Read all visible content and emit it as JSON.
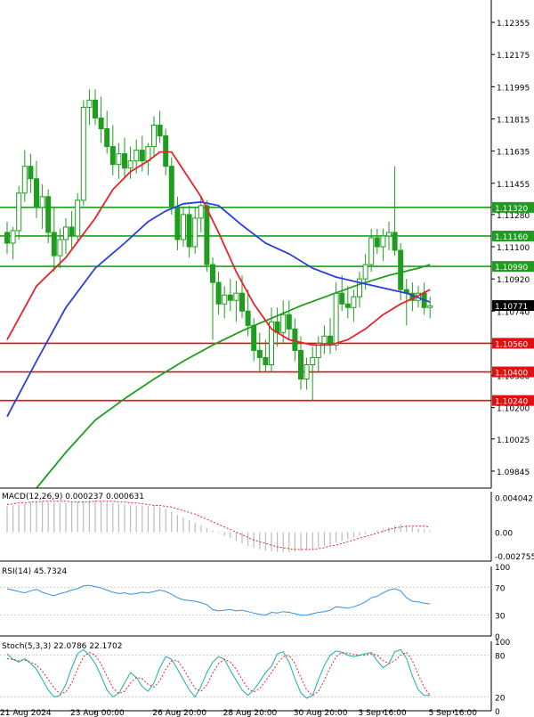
{
  "chart_data": {
    "type": "candlestick",
    "instrument_timeframe": "",
    "main": {
      "y_ticks": [
        "1.12355",
        "1.12175",
        "1.11995",
        "1.11815",
        "1.11635",
        "1.11455",
        "1.11280",
        "1.11100",
        "1.10920",
        "1.10740",
        "1.10560",
        "1.10380",
        "1.10200",
        "1.10025",
        "1.09845"
      ],
      "y_tick_values": [
        1.12355,
        1.12175,
        1.11995,
        1.11815,
        1.11635,
        1.11455,
        1.1128,
        1.111,
        1.1092,
        1.1074,
        1.1056,
        1.1038,
        1.102,
        1.10025,
        1.09845
      ],
      "ylim": [
        1.0975,
        1.1248
      ],
      "current_price": "1.10771",
      "current_value": 1.10771,
      "support_resistance": [
        {
          "label": "1.11320",
          "value": 1.1132,
          "color": "#1f9d1f"
        },
        {
          "label": "1.11160",
          "value": 1.1116,
          "color": "#1f9d1f"
        },
        {
          "label": "1.10990",
          "value": 1.1099,
          "color": "#1f9d1f"
        },
        {
          "label": "1.10560",
          "value": 1.1056,
          "color": "#e01010"
        },
        {
          "label": "1.10400",
          "value": 1.104,
          "color": "#e01010"
        },
        {
          "label": "1.10240",
          "value": 1.1024,
          "color": "#e01010"
        }
      ],
      "candles": [
        [
          1.1118,
          1.1124,
          1.1106,
          1.1112
        ],
        [
          1.1112,
          1.1121,
          1.1103,
          1.1119
        ],
        [
          1.1119,
          1.1144,
          1.1114,
          1.114
        ],
        [
          1.114,
          1.1164,
          1.1135,
          1.1155
        ],
        [
          1.1155,
          1.1162,
          1.114,
          1.1148
        ],
        [
          1.1148,
          1.1158,
          1.1126,
          1.1132
        ],
        [
          1.1132,
          1.1145,
          1.112,
          1.1138
        ],
        [
          1.1138,
          1.1142,
          1.1112,
          1.1118
        ],
        [
          1.1118,
          1.1132,
          1.1096,
          1.1105
        ],
        [
          1.1105,
          1.112,
          1.1098,
          1.1114
        ],
        [
          1.1114,
          1.1126,
          1.1106,
          1.1121
        ],
        [
          1.1121,
          1.113,
          1.1108,
          1.1116
        ],
        [
          1.1116,
          1.114,
          1.1112,
          1.1136
        ],
        [
          1.1136,
          1.1192,
          1.1133,
          1.1188
        ],
        [
          1.1188,
          1.1198,
          1.1178,
          1.1192
        ],
        [
          1.1192,
          1.1198,
          1.1178,
          1.1182
        ],
        [
          1.1182,
          1.1194,
          1.1168,
          1.1176
        ],
        [
          1.1176,
          1.1186,
          1.1162,
          1.1166
        ],
        [
          1.1166,
          1.1178,
          1.115,
          1.1156
        ],
        [
          1.1156,
          1.1168,
          1.1148,
          1.1162
        ],
        [
          1.1162,
          1.1171,
          1.1148,
          1.1154
        ],
        [
          1.1154,
          1.1166,
          1.1148,
          1.1158
        ],
        [
          1.1158,
          1.117,
          1.1151,
          1.1164
        ],
        [
          1.1164,
          1.1172,
          1.1152,
          1.1158
        ],
        [
          1.1158,
          1.1168,
          1.115,
          1.1166
        ],
        [
          1.1166,
          1.1183,
          1.116,
          1.1178
        ],
        [
          1.1178,
          1.1186,
          1.1168,
          1.1172
        ],
        [
          1.1172,
          1.1176,
          1.115,
          1.1155
        ],
        [
          1.1155,
          1.116,
          1.1128,
          1.1132
        ],
        [
          1.1132,
          1.1138,
          1.1108,
          1.1114
        ],
        [
          1.1114,
          1.1132,
          1.111,
          1.1128
        ],
        [
          1.1128,
          1.1133,
          1.1104,
          1.111
        ],
        [
          1.111,
          1.1132,
          1.1106,
          1.1126
        ],
        [
          1.1126,
          1.1138,
          1.1118,
          1.1133
        ],
        [
          1.1133,
          1.1136,
          1.1096,
          1.11
        ],
        [
          1.11,
          1.1104,
          1.1058,
          1.109
        ],
        [
          1.109,
          1.1096,
          1.1072,
          1.1078
        ],
        [
          1.1078,
          1.1088,
          1.107,
          1.1083
        ],
        [
          1.1083,
          1.1092,
          1.1074,
          1.108
        ],
        [
          1.108,
          1.1091,
          1.1068,
          1.1084
        ],
        [
          1.1084,
          1.1094,
          1.107,
          1.1074
        ],
        [
          1.1074,
          1.1086,
          1.106,
          1.1066
        ],
        [
          1.1066,
          1.107,
          1.1046,
          1.1052
        ],
        [
          1.1052,
          1.1062,
          1.104,
          1.1048
        ],
        [
          1.1048,
          1.1058,
          1.104,
          1.1044
        ],
        [
          1.1044,
          1.1076,
          1.104,
          1.1068
        ],
        [
          1.1068,
          1.1076,
          1.1054,
          1.1062
        ],
        [
          1.1062,
          1.108,
          1.1056,
          1.1072
        ],
        [
          1.1072,
          1.108,
          1.1058,
          1.1064
        ],
        [
          1.1064,
          1.107,
          1.1046,
          1.1052
        ],
        [
          1.1052,
          1.106,
          1.103,
          1.1036
        ],
        [
          1.1036,
          1.1048,
          1.103,
          1.1044
        ],
        [
          1.1044,
          1.1054,
          1.1024,
          1.1048
        ],
        [
          1.1048,
          1.106,
          1.104,
          1.1056
        ],
        [
          1.1056,
          1.1066,
          1.105,
          1.106
        ],
        [
          1.106,
          1.107,
          1.105,
          1.1055
        ],
        [
          1.1055,
          1.109,
          1.1052,
          1.1084
        ],
        [
          1.1084,
          1.1094,
          1.1074,
          1.1078
        ],
        [
          1.1078,
          1.1088,
          1.107,
          1.1076
        ],
        [
          1.1076,
          1.1086,
          1.1068,
          1.1082
        ],
        [
          1.1082,
          1.1096,
          1.1076,
          1.1092
        ],
        [
          1.1092,
          1.1106,
          1.1086,
          1.11
        ],
        [
          1.11,
          1.112,
          1.1096,
          1.1115
        ],
        [
          1.1115,
          1.112,
          1.1106,
          1.111
        ],
        [
          1.111,
          1.112,
          1.1102,
          1.1116
        ],
        [
          1.1116,
          1.1124,
          1.1108,
          1.1118
        ],
        [
          1.1118,
          1.1155,
          1.1105,
          1.1108
        ],
        [
          1.1108,
          1.1112,
          1.108,
          1.1086
        ],
        [
          1.1086,
          1.1092,
          1.1066,
          1.1084
        ],
        [
          1.1084,
          1.109,
          1.1074,
          1.108
        ],
        [
          1.108,
          1.1088,
          1.1076,
          1.1084
        ],
        [
          1.1084,
          1.109,
          1.1072,
          1.1076
        ],
        [
          1.1076,
          1.1082,
          1.107,
          1.1077
        ]
      ],
      "ma_short": [
        [
          0,
          1.1058
        ],
        [
          5,
          1.1088
        ],
        [
          10,
          1.1104
        ],
        [
          15,
          1.1126
        ],
        [
          18,
          1.1142
        ],
        [
          21,
          1.1152
        ],
        [
          24,
          1.1158
        ],
        [
          26,
          1.1163
        ],
        [
          28,
          1.1163
        ],
        [
          30,
          1.1153
        ],
        [
          33,
          1.1138
        ],
        [
          36,
          1.1118
        ],
        [
          39,
          1.1096
        ],
        [
          42,
          1.1078
        ],
        [
          45,
          1.1064
        ],
        [
          48,
          1.1058
        ],
        [
          52,
          1.1055
        ],
        [
          55,
          1.1055
        ],
        [
          58,
          1.1058
        ],
        [
          61,
          1.1064
        ],
        [
          64,
          1.1072
        ],
        [
          67,
          1.1078
        ],
        [
          69,
          1.1081
        ],
        [
          72,
          1.1086
        ]
      ],
      "ma_mid": [
        [
          0,
          1.1015
        ],
        [
          5,
          1.1046
        ],
        [
          10,
          1.1076
        ],
        [
          15,
          1.1098
        ],
        [
          20,
          1.1112
        ],
        [
          24,
          1.1124
        ],
        [
          27,
          1.113
        ],
        [
          30,
          1.1134
        ],
        [
          33,
          1.1135
        ],
        [
          36,
          1.1133
        ],
        [
          40,
          1.1122
        ],
        [
          44,
          1.1112
        ],
        [
          48,
          1.1106
        ],
        [
          52,
          1.1098
        ],
        [
          56,
          1.1093
        ],
        [
          60,
          1.109
        ],
        [
          64,
          1.1087
        ],
        [
          68,
          1.1084
        ],
        [
          72,
          1.1079
        ]
      ],
      "ma_long": [
        [
          5,
          1.0975
        ],
        [
          10,
          1.0995
        ],
        [
          15,
          1.1013
        ],
        [
          20,
          1.1025
        ],
        [
          25,
          1.1036
        ],
        [
          30,
          1.1046
        ],
        [
          35,
          1.1055
        ],
        [
          40,
          1.1063
        ],
        [
          45,
          1.107
        ],
        [
          50,
          1.1077
        ],
        [
          55,
          1.1083
        ],
        [
          60,
          1.1089
        ],
        [
          65,
          1.1094
        ],
        [
          70,
          1.1098
        ],
        [
          72,
          1.11
        ]
      ],
      "series_colors": {
        "ma_short": "#e8232b",
        "ma_mid": "#2a3ee0",
        "ma_long": "#1f9d1f",
        "candle": "#1f9d1f"
      }
    },
    "macd": {
      "label": "MACD(12,26,9) 0.000237 0.000631",
      "y_ticks": [
        "0.004042",
        "0.00",
        "-0.002755"
      ],
      "y_tick_values": [
        0.004042,
        0,
        -0.002755
      ],
      "ylim": [
        -0.00335,
        0.0047
      ],
      "histogram": [
        0.003,
        0.0031,
        0.0032,
        0.0033,
        0.0035,
        0.0036,
        0.0036,
        0.0035,
        0.0034,
        0.0034,
        0.0034,
        0.0034,
        0.0035,
        0.0036,
        0.0037,
        0.0037,
        0.0036,
        0.0035,
        0.0034,
        0.0033,
        0.0032,
        0.0031,
        0.0031,
        0.0031,
        0.003,
        0.003,
        0.0029,
        0.0027,
        0.0024,
        0.002,
        0.0017,
        0.0014,
        0.0011,
        0.0008,
        0.0005,
        0.0002,
        -0.0001,
        -0.0004,
        -0.0007,
        -0.001,
        -0.0013,
        -0.0016,
        -0.0018,
        -0.002,
        -0.0021,
        -0.0022,
        -0.0023,
        -0.0023,
        -0.0023,
        -0.0022,
        -0.0022,
        -0.0021,
        -0.002,
        -0.0018,
        -0.0016,
        -0.0014,
        -0.0012,
        -0.001,
        -0.0008,
        -0.0006,
        -0.0004,
        -0.0002,
        0.0,
        0.0002,
        0.0004,
        0.0006,
        0.0008,
        0.0009,
        0.0008,
        0.0006,
        0.0004,
        0.0003,
        0.0002
      ],
      "signal": [
        0.0032,
        0.0033,
        0.0034,
        0.0034,
        0.0035,
        0.0035,
        0.0036,
        0.0036,
        0.0036,
        0.0036,
        0.0036,
        0.0035,
        0.0035,
        0.0035,
        0.0035,
        0.0036,
        0.0036,
        0.0036,
        0.0036,
        0.0035,
        0.0035,
        0.0034,
        0.0034,
        0.0033,
        0.0032,
        0.0031,
        0.0031,
        0.003,
        0.0029,
        0.0027,
        0.0025,
        0.0023,
        0.0021,
        0.0018,
        0.0015,
        0.0012,
        0.0009,
        0.0006,
        0.0003,
        0.0,
        -0.0003,
        -0.0006,
        -0.0009,
        -0.0011,
        -0.0013,
        -0.0015,
        -0.0017,
        -0.0018,
        -0.0019,
        -0.002,
        -0.002,
        -0.002,
        -0.002,
        -0.0019,
        -0.0018,
        -0.0016,
        -0.0015,
        -0.0013,
        -0.0011,
        -0.0009,
        -0.0007,
        -0.0005,
        -0.0003,
        -0.0001,
        0.0001,
        0.0003,
        0.0005,
        0.0006,
        0.0007,
        0.0007,
        0.0007,
        0.0007,
        0.0006
      ],
      "colors": {
        "histogram": "#bbbbbb",
        "signal": "#e8232b"
      }
    },
    "rsi": {
      "label": "RSI(14) 45.7324",
      "y_ticks": [
        "100",
        "70",
        "30",
        "0"
      ],
      "y_tick_values": [
        100,
        70,
        30,
        0
      ],
      "values": [
        68,
        66,
        64,
        62,
        65,
        67,
        63,
        60,
        58,
        61,
        63,
        66,
        68,
        72,
        73,
        71,
        69,
        66,
        63,
        61,
        62,
        60,
        61,
        63,
        62,
        64,
        66,
        64,
        60,
        55,
        52,
        51,
        50,
        48,
        45,
        38,
        36,
        37,
        38,
        36,
        37,
        35,
        33,
        31,
        30,
        34,
        33,
        35,
        34,
        32,
        30,
        30,
        32,
        34,
        35,
        37,
        42,
        41,
        40,
        42,
        45,
        49,
        55,
        57,
        62,
        66,
        68,
        65,
        55,
        50,
        49,
        47,
        46
      ],
      "color": "#3a8ee6"
    },
    "stoch": {
      "label": "Stoch(5,3,3) 22.0786 22.1702",
      "y_ticks": [
        "100",
        "80",
        "20",
        "0"
      ],
      "y_tick_values": [
        100,
        80,
        20,
        0
      ],
      "k": [
        82,
        74,
        70,
        75,
        68,
        60,
        45,
        30,
        20,
        22,
        38,
        62,
        82,
        88,
        80,
        68,
        50,
        30,
        20,
        25,
        40,
        55,
        48,
        35,
        28,
        40,
        62,
        78,
        74,
        60,
        45,
        30,
        20,
        35,
        55,
        70,
        78,
        74,
        58,
        44,
        30,
        22,
        30,
        42,
        55,
        64,
        82,
        85,
        70,
        46,
        26,
        18,
        22,
        45,
        65,
        80,
        86,
        84,
        80,
        78,
        80,
        82,
        84,
        72,
        62,
        68,
        85,
        88,
        75,
        50,
        30,
        22,
        22
      ],
      "d": [
        75,
        74,
        72,
        73,
        70,
        66,
        57,
        45,
        33,
        24,
        27,
        40,
        60,
        78,
        84,
        80,
        67,
        50,
        33,
        25,
        28,
        40,
        48,
        46,
        38,
        34,
        43,
        60,
        72,
        72,
        61,
        46,
        32,
        28,
        37,
        54,
        68,
        74,
        70,
        60,
        45,
        32,
        27,
        32,
        43,
        55,
        68,
        78,
        80,
        68,
        48,
        30,
        22,
        28,
        44,
        62,
        78,
        84,
        83,
        81,
        80,
        80,
        82,
        80,
        72,
        68,
        72,
        80,
        84,
        72,
        52,
        34,
        22
      ],
      "colors": {
        "k": "#17b0a8",
        "d": "#e8232b"
      }
    },
    "x_ticks": [
      "21 Aug 2024",
      "23 Aug 00:00",
      "26 Aug 20:00",
      "28 Aug 20:00",
      "30 Aug 20:00",
      "3 Sep 16:00",
      "5 Sep 16:00"
    ],
    "x_tick_indices": [
      2,
      15,
      29,
      41,
      53,
      64,
      76
    ]
  }
}
